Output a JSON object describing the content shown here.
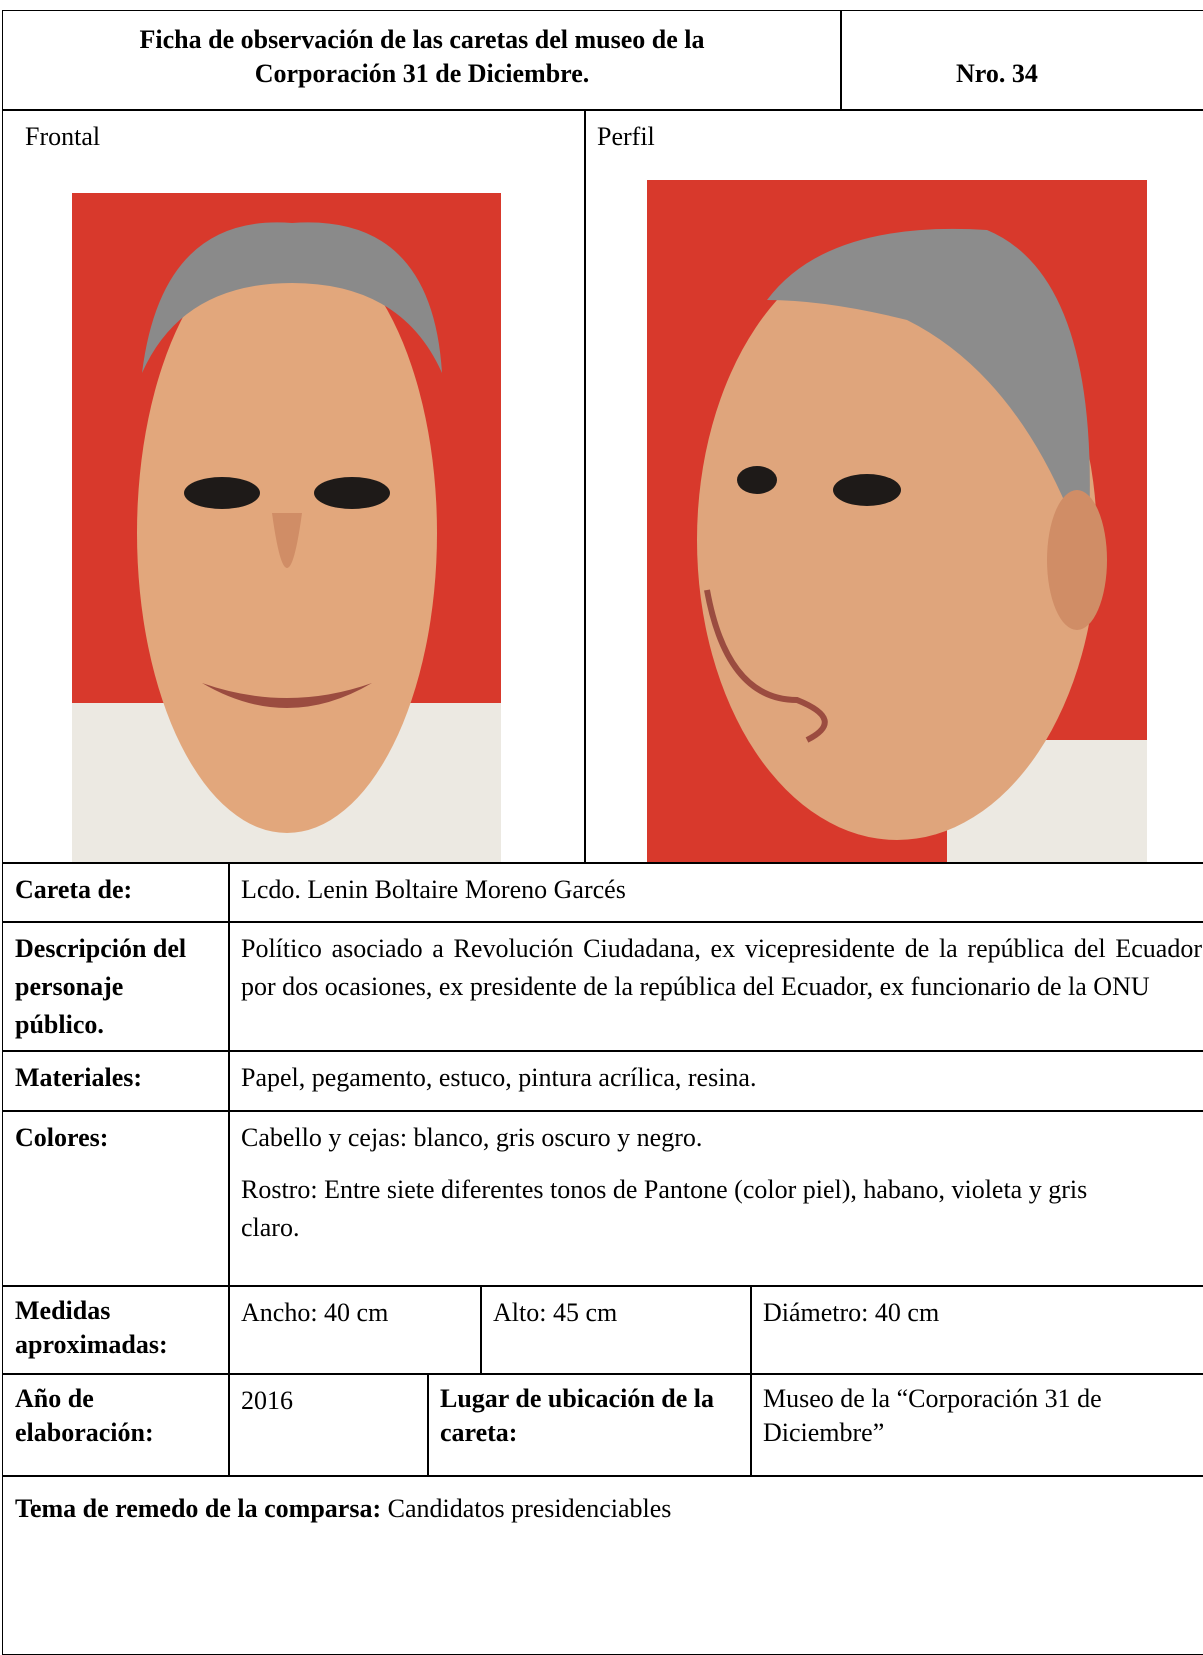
{
  "header": {
    "title_lines": [
      "Ficha de observación de las caretas del museo de la",
      "Corporación 31 de Diciembre."
    ],
    "number": "Nro. 34"
  },
  "photos": {
    "frontal_label": "Frontal",
    "profile_label": "Perfil"
  },
  "careta": {
    "label": "Careta de:",
    "value": "Lcdo. Lenin Boltaire Moreno Garcés"
  },
  "description": {
    "label": "Descripción del personaje público.",
    "value": "Político asociado a Revolución Ciudadana, ex vicepresidente de la república del Ecuador por dos ocasiones, ex presidente de la república del Ecuador, ex funcionario de la ONU"
  },
  "materials": {
    "label": "Materiales:",
    "value": "Papel, pegamento, estuco, pintura acrílica, resina."
  },
  "colors": {
    "label": "Colores:",
    "paragraphs": [
      "Cabello y cejas: blanco, gris oscuro y negro.",
      "Rostro: Entre siete diferentes tonos de Pantone (color piel), habano, violeta y gris claro."
    ]
  },
  "measures": {
    "label": "Medidas aproximadas:",
    "width": "Ancho: 40 cm",
    "height": "Alto: 45 cm",
    "diameter": "Diámetro: 40 cm"
  },
  "year": {
    "label": "Año de elaboración:",
    "value": "2016",
    "place_label": "Lugar de ubicación de la careta:",
    "place_value": "Museo de la “Corporación 31 de Diciembre”"
  },
  "theme": {
    "label": "Tema de remedo de la comparsa:",
    "value": "Candidatos presidenciables"
  }
}
